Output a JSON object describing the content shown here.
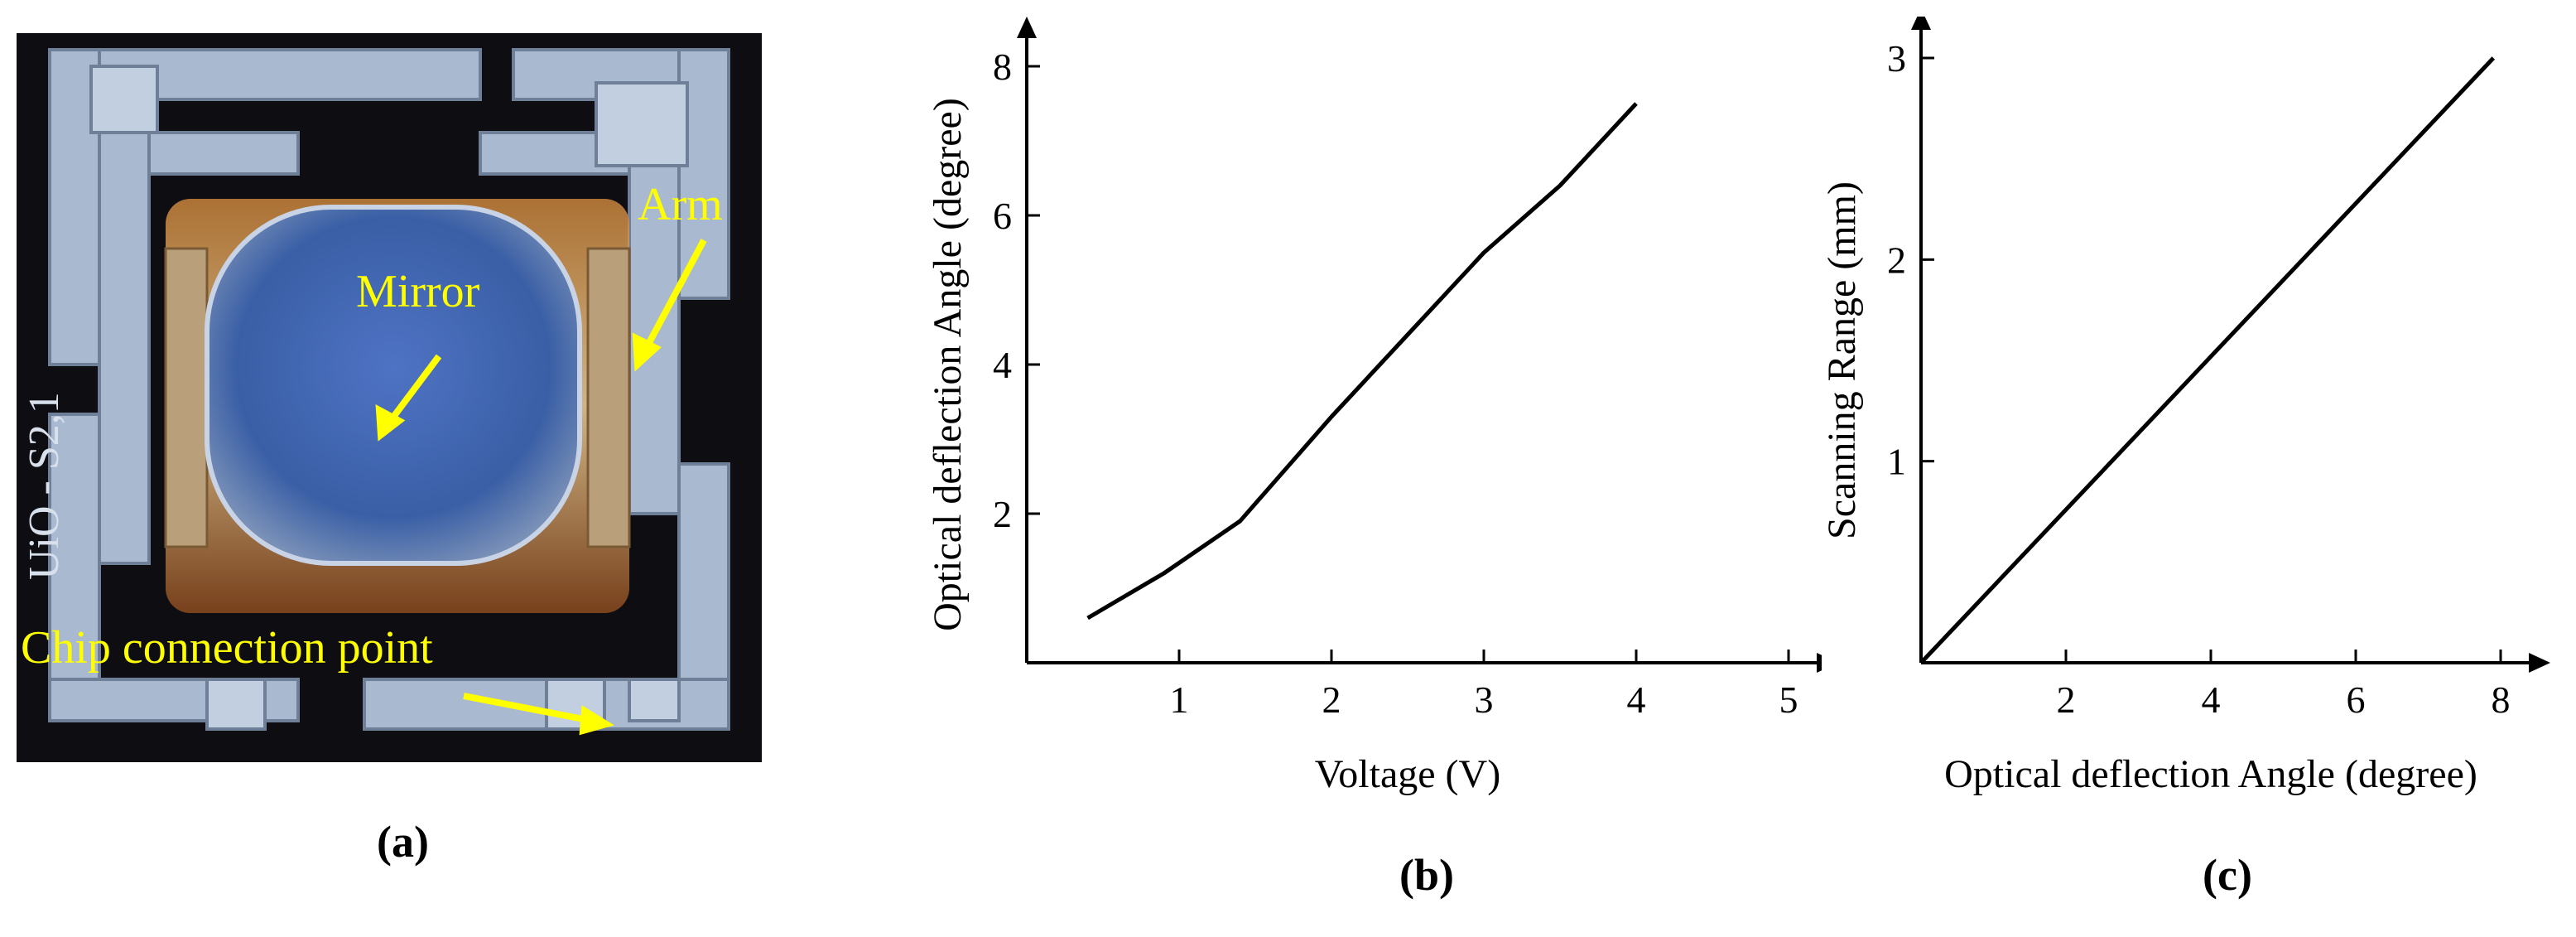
{
  "panels": {
    "a": {
      "label": "(a)",
      "annotations": {
        "mirror": "Mirror",
        "arm": "Arm",
        "chip": "Chip connection point",
        "chip_id": "UiO - S2,1"
      }
    },
    "b": {
      "label": "(b)"
    },
    "c": {
      "label": "(c)"
    }
  },
  "colors": {
    "annotation": "#ffff00",
    "mirror": "#3a5fa6",
    "chip_frame": "#a9b9cf",
    "line": "#000000"
  },
  "chart_data": [
    {
      "type": "line",
      "xlabel": "Voltage (V)",
      "ylabel": "Optical deflection Angle (degree)",
      "xlim": [
        0,
        5
      ],
      "ylim": [
        0,
        8
      ],
      "xticks": [
        1,
        2,
        3,
        4,
        5
      ],
      "yticks": [
        2,
        4,
        6,
        8
      ],
      "grid": false,
      "series": [
        {
          "x": [
            0.4,
            0.9,
            1.4,
            2.0,
            2.5,
            3.0,
            3.5,
            4.0
          ],
          "y": [
            0.6,
            1.2,
            1.9,
            3.3,
            4.4,
            5.5,
            6.4,
            7.5
          ]
        }
      ]
    },
    {
      "type": "line",
      "xlabel": "Optical deflection Angle (degree)",
      "ylabel": "Scanning Range (mm)",
      "xlim": [
        0,
        8
      ],
      "ylim": [
        0,
        3
      ],
      "xticks": [
        2,
        4,
        6,
        8
      ],
      "yticks": [
        1,
        2,
        3
      ],
      "grid": false,
      "series": [
        {
          "x": [
            0,
            7.9
          ],
          "y": [
            0,
            3.0
          ]
        }
      ]
    }
  ]
}
